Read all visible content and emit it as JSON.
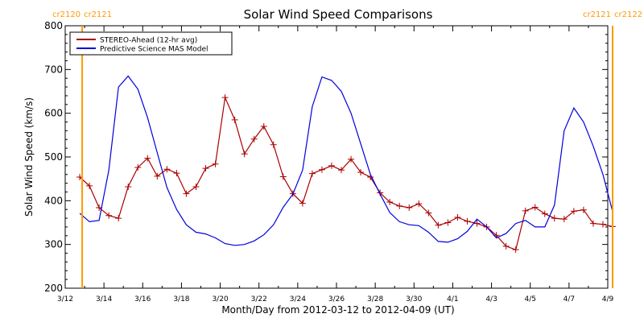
{
  "chart_data": {
    "type": "line",
    "title": "Solar Wind Speed Comparisons",
    "xlabel": "Month/Day from 2012-03-12 to 2012-04-09 (UT)",
    "ylabel": "Solar Wind Speed (km/s)",
    "xlim": [
      "2012-03-12",
      "2012-04-09"
    ],
    "ylim": [
      200,
      800
    ],
    "y_ticks": [
      200,
      300,
      400,
      500,
      600,
      700,
      800
    ],
    "x_ticks": [
      {
        "date": "2012-03-12",
        "label": "3/12"
      },
      {
        "date": "2012-03-14",
        "label": "3/14"
      },
      {
        "date": "2012-03-16",
        "label": "3/16"
      },
      {
        "date": "2012-03-18",
        "label": "3/18"
      },
      {
        "date": "2012-03-20",
        "label": "3/20"
      },
      {
        "date": "2012-03-22",
        "label": "3/22"
      },
      {
        "date": "2012-03-24",
        "label": "3/24"
      },
      {
        "date": "2012-03-26",
        "label": "3/26"
      },
      {
        "date": "2012-03-28",
        "label": "3/28"
      },
      {
        "date": "2012-03-30",
        "label": "3/30"
      },
      {
        "date": "2012-04-01",
        "label": "4/1"
      },
      {
        "date": "2012-04-03",
        "label": "4/3"
      },
      {
        "date": "2012-04-05",
        "label": "4/5"
      },
      {
        "date": "2012-04-07",
        "label": "4/7"
      },
      {
        "date": "2012-04-09",
        "label": "4/9"
      }
    ],
    "legend_position": "top-left",
    "grid": false,
    "series": [
      {
        "name": "STEREO-Ahead (12-hr avg)",
        "color": "#aa0000",
        "marker": "plus",
        "points": [
          [
            "2012-03-12T18:00",
            454
          ],
          [
            "2012-03-13T06:00",
            434
          ],
          [
            "2012-03-13T18:00",
            384
          ],
          [
            "2012-03-14T06:00",
            366
          ],
          [
            "2012-03-14T18:00",
            360
          ],
          [
            "2012-03-15T06:00",
            432
          ],
          [
            "2012-03-15T18:00",
            476
          ],
          [
            "2012-03-16T06:00",
            497
          ],
          [
            "2012-03-16T18:00",
            456
          ],
          [
            "2012-03-17T06:00",
            472
          ],
          [
            "2012-03-17T18:00",
            463
          ],
          [
            "2012-03-18T06:00",
            416
          ],
          [
            "2012-03-18T18:00",
            432
          ],
          [
            "2012-03-19T06:00",
            474
          ],
          [
            "2012-03-19T18:00",
            484
          ],
          [
            "2012-03-20T06:00",
            636
          ],
          [
            "2012-03-20T18:00",
            585
          ],
          [
            "2012-03-21T06:00",
            507
          ],
          [
            "2012-03-21T18:00",
            541
          ],
          [
            "2012-03-22T06:00",
            570
          ],
          [
            "2012-03-22T18:00",
            528
          ],
          [
            "2012-03-23T06:00",
            455
          ],
          [
            "2012-03-23T18:00",
            416
          ],
          [
            "2012-03-24T06:00",
            394
          ],
          [
            "2012-03-24T18:00",
            462
          ],
          [
            "2012-03-25T06:00",
            471
          ],
          [
            "2012-03-25T18:00",
            480
          ],
          [
            "2012-03-26T06:00",
            470
          ],
          [
            "2012-03-26T18:00",
            495
          ],
          [
            "2012-03-27T06:00",
            465
          ],
          [
            "2012-03-27T18:00",
            454
          ],
          [
            "2012-03-28T06:00",
            418
          ],
          [
            "2012-03-28T18:00",
            397
          ],
          [
            "2012-03-29T06:00",
            388
          ],
          [
            "2012-03-29T18:00",
            384
          ],
          [
            "2012-03-30T06:00",
            393
          ],
          [
            "2012-03-30T18:00",
            372
          ],
          [
            "2012-03-31T06:00",
            344
          ],
          [
            "2012-03-31T18:00",
            350
          ],
          [
            "2012-04-01T06:00",
            362
          ],
          [
            "2012-04-01T18:00",
            353
          ],
          [
            "2012-04-02T06:00",
            348
          ],
          [
            "2012-04-02T18:00",
            340
          ],
          [
            "2012-04-03T06:00",
            321
          ],
          [
            "2012-04-03T18:00",
            296
          ],
          [
            "2012-04-04T06:00",
            288
          ],
          [
            "2012-04-04T18:00",
            377
          ],
          [
            "2012-04-05T06:00",
            385
          ],
          [
            "2012-04-05T18:00",
            370
          ],
          [
            "2012-04-06T06:00",
            360
          ],
          [
            "2012-04-06T18:00",
            358
          ],
          [
            "2012-04-07T06:00",
            376
          ],
          [
            "2012-04-07T18:00",
            379
          ],
          [
            "2012-04-08T06:00",
            348
          ],
          [
            "2012-04-08T18:00",
            346
          ],
          [
            "2012-04-09T06:00",
            341
          ]
        ]
      },
      {
        "name": "Predictive Science MAS Model",
        "color": "#0000dd",
        "marker": "none",
        "points": [
          [
            "2012-03-12T18:00",
            371
          ],
          [
            "2012-03-13T06:00",
            352
          ],
          [
            "2012-03-13T18:00",
            355
          ],
          [
            "2012-03-14T06:00",
            470
          ],
          [
            "2012-03-14T18:00",
            660
          ],
          [
            "2012-03-15T06:00",
            685
          ],
          [
            "2012-03-15T18:00",
            655
          ],
          [
            "2012-03-16T06:00",
            590
          ],
          [
            "2012-03-16T18:00",
            510
          ],
          [
            "2012-03-17T06:00",
            430
          ],
          [
            "2012-03-17T18:00",
            380
          ],
          [
            "2012-03-18T06:00",
            345
          ],
          [
            "2012-03-18T18:00",
            328
          ],
          [
            "2012-03-19T06:00",
            324
          ],
          [
            "2012-03-19T18:00",
            315
          ],
          [
            "2012-03-20T06:00",
            302
          ],
          [
            "2012-03-20T18:00",
            298
          ],
          [
            "2012-03-21T06:00",
            300
          ],
          [
            "2012-03-21T18:00",
            308
          ],
          [
            "2012-03-22T06:00",
            322
          ],
          [
            "2012-03-22T18:00",
            345
          ],
          [
            "2012-03-23T06:00",
            385
          ],
          [
            "2012-03-23T18:00",
            415
          ],
          [
            "2012-03-24T06:00",
            470
          ],
          [
            "2012-03-24T18:00",
            615
          ],
          [
            "2012-03-25T06:00",
            683
          ],
          [
            "2012-03-25T18:00",
            675
          ],
          [
            "2012-03-26T06:00",
            650
          ],
          [
            "2012-03-26T18:00",
            600
          ],
          [
            "2012-03-27T06:00",
            530
          ],
          [
            "2012-03-27T18:00",
            460
          ],
          [
            "2012-03-28T06:00",
            415
          ],
          [
            "2012-03-28T18:00",
            373
          ],
          [
            "2012-03-29T06:00",
            352
          ],
          [
            "2012-03-29T18:00",
            345
          ],
          [
            "2012-03-30T06:00",
            343
          ],
          [
            "2012-03-30T18:00",
            328
          ],
          [
            "2012-03-31T06:00",
            307
          ],
          [
            "2012-03-31T18:00",
            305
          ],
          [
            "2012-04-01T06:00",
            313
          ],
          [
            "2012-04-01T18:00",
            330
          ],
          [
            "2012-04-02T06:00",
            358
          ],
          [
            "2012-04-02T18:00",
            340
          ],
          [
            "2012-04-03T06:00",
            315
          ],
          [
            "2012-04-03T18:00",
            325
          ],
          [
            "2012-04-04T06:00",
            348
          ],
          [
            "2012-04-04T18:00",
            355
          ],
          [
            "2012-04-05T06:00",
            340
          ],
          [
            "2012-04-05T18:00",
            340
          ],
          [
            "2012-04-06T06:00",
            390
          ],
          [
            "2012-04-06T18:00",
            560
          ],
          [
            "2012-04-07T06:00",
            612
          ],
          [
            "2012-04-07T18:00",
            580
          ],
          [
            "2012-04-08T06:00",
            525
          ],
          [
            "2012-04-08T18:00",
            460
          ],
          [
            "2012-04-09T06:00",
            375
          ]
        ]
      }
    ],
    "markers": [
      {
        "date": "2012-03-12T21:00",
        "label_left": "cr2120",
        "label_right": "cr2121",
        "color": "#ff9900"
      },
      {
        "date": "2012-04-09T06:00",
        "label_left": "cr2121",
        "label_right": "cr2122",
        "color": "#ff9900"
      }
    ]
  }
}
